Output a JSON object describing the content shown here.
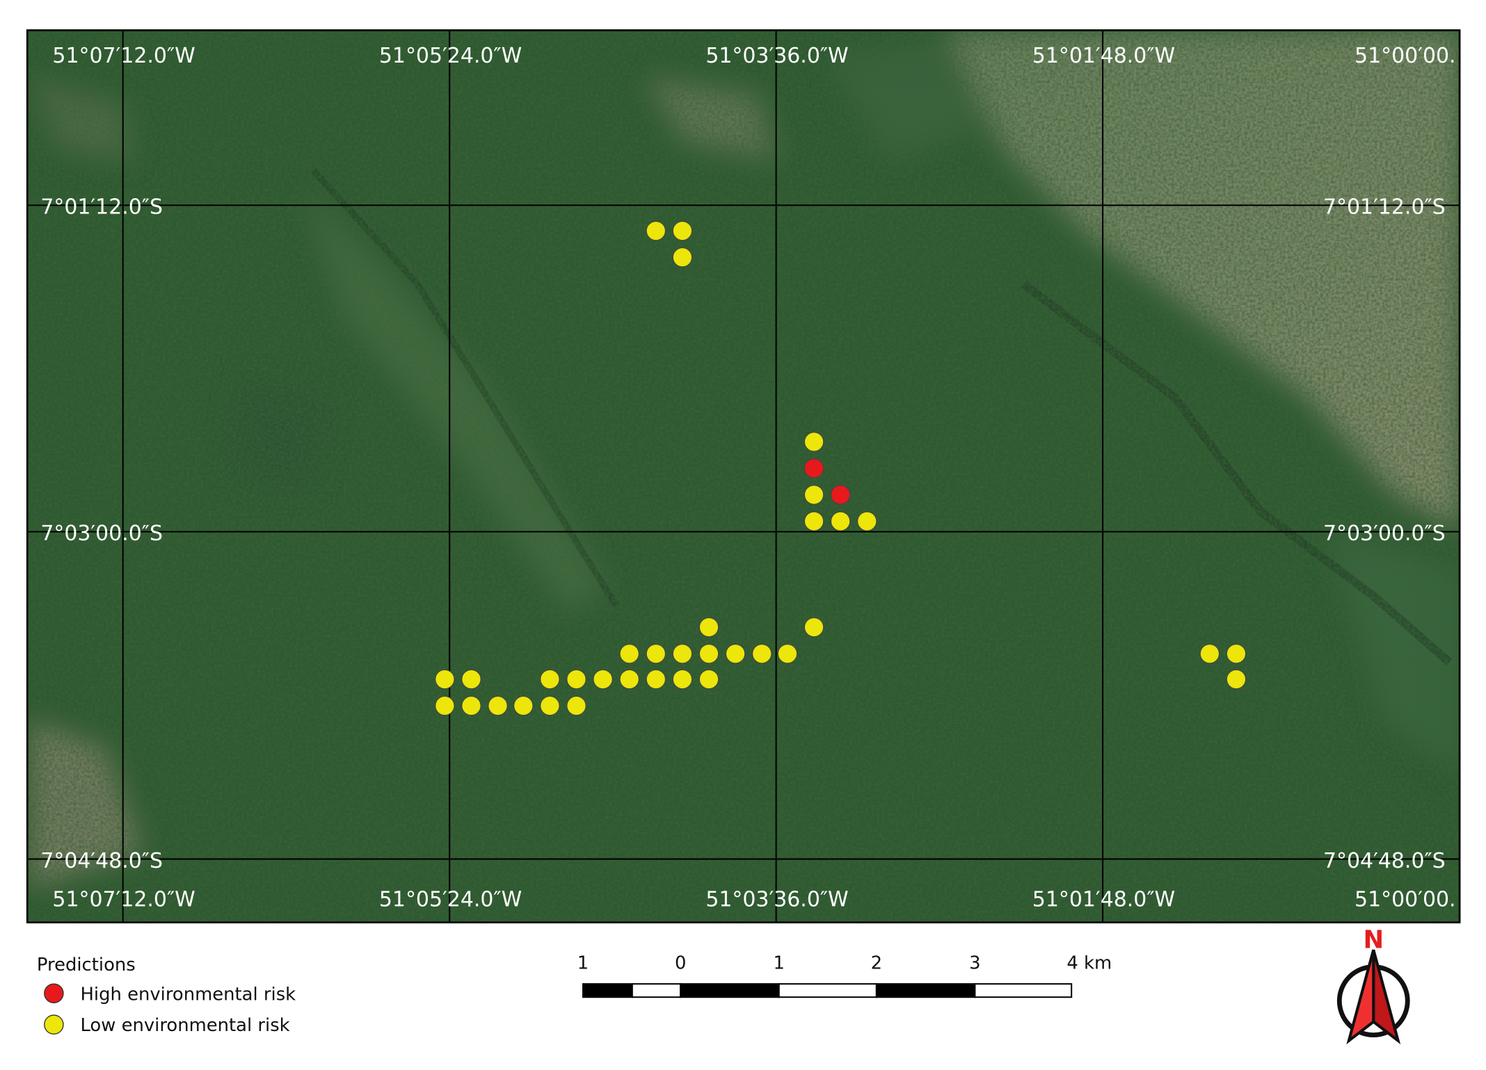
{
  "map": {
    "longitude_labels": [
      "51°07′12.0″W",
      "51°05′24.0″W",
      "51°03′36.0″W",
      "51°01′48.0″W",
      "51°00′00."
    ],
    "latitude_labels": [
      "7°01′12.0″S",
      "7°03′00.0″S",
      "7°04′48.0″S"
    ],
    "legend": {
      "title": "Predictions",
      "items": [
        {
          "label": "High environmental risk",
          "color": "#e8191c"
        },
        {
          "label": "Low environmental risk",
          "color": "#ece60a"
        }
      ]
    },
    "scale_bar": {
      "labels": [
        "1",
        "0",
        "1",
        "2",
        "3",
        "4 km"
      ]
    },
    "north_label": "N"
  }
}
